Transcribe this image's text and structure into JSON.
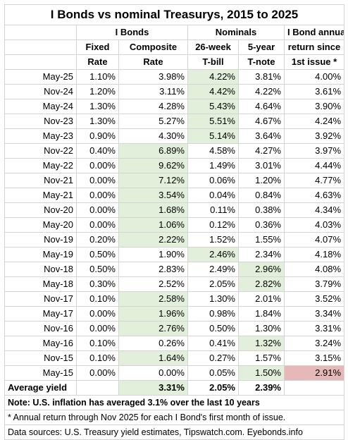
{
  "title": "I Bonds vs nominal Treasurys, 2015 to 2025",
  "header": {
    "group_ibonds": "I Bonds",
    "group_nominals": "Nominals",
    "group_return": "I Bond annual",
    "col_fixed_1": "Fixed",
    "col_fixed_2": "Rate",
    "col_comp_1": "Composite",
    "col_comp_2": "Rate",
    "col_tbill_1": "26-week",
    "col_tbill_2": "T-bill",
    "col_tnote_1": "5-year",
    "col_tnote_2": "T-note",
    "col_return_1": "return since",
    "col_return_2": "1st issue *"
  },
  "highlight_colors": {
    "green": "#e2efda",
    "red": "#e6b8b7"
  },
  "rows": [
    {
      "date": "May-25",
      "fixed": "1.10%",
      "composite": "3.98%",
      "tbill": "4.22%",
      "tnote": "3.81%",
      "ret": "4.00%"
    },
    {
      "date": "Nov-24",
      "fixed": "1.20%",
      "composite": "3.11%",
      "tbill": "4.42%",
      "tnote": "4.22%",
      "ret": "3.61%"
    },
    {
      "date": "May-24",
      "fixed": "1.30%",
      "composite": "4.28%",
      "tbill": "5.43%",
      "tnote": "4.64%",
      "ret": "3.90%"
    },
    {
      "date": "Nov-23",
      "fixed": "1.30%",
      "composite": "5.27%",
      "tbill": "5.51%",
      "tnote": "4.67%",
      "ret": "4.24%"
    },
    {
      "date": "May-23",
      "fixed": "0.90%",
      "composite": "4.30%",
      "tbill": "5.14%",
      "tnote": "3.64%",
      "ret": "3.92%"
    },
    {
      "date": "Nov-22",
      "fixed": "0.40%",
      "composite": "6.89%",
      "tbill": "4.58%",
      "tnote": "4.27%",
      "ret": "3.97%"
    },
    {
      "date": "May-22",
      "fixed": "0.00%",
      "composite": "9.62%",
      "tbill": "1.49%",
      "tnote": "3.01%",
      "ret": "4.44%"
    },
    {
      "date": "Nov-21",
      "fixed": "0.00%",
      "composite": "7.12%",
      "tbill": "0.06%",
      "tnote": "1.20%",
      "ret": "4.77%"
    },
    {
      "date": "May-21",
      "fixed": "0.00%",
      "composite": "3.54%",
      "tbill": "0.04%",
      "tnote": "0.84%",
      "ret": "4.63%"
    },
    {
      "date": "Nov-20",
      "fixed": "0.00%",
      "composite": "1.68%",
      "tbill": "0.11%",
      "tnote": "0.38%",
      "ret": "4.34%"
    },
    {
      "date": "May-20",
      "fixed": "0.00%",
      "composite": "1.06%",
      "tbill": "0.12%",
      "tnote": "0.36%",
      "ret": "4.03%"
    },
    {
      "date": "Nov-19",
      "fixed": "0.20%",
      "composite": "2.22%",
      "tbill": "1.52%",
      "tnote": "1.55%",
      "ret": "4.07%"
    },
    {
      "date": "May-19",
      "fixed": "0.50%",
      "composite": "1.90%",
      "tbill": "2.46%",
      "tnote": "2.34%",
      "ret": "4.18%"
    },
    {
      "date": "Nov-18",
      "fixed": "0.50%",
      "composite": "2.83%",
      "tbill": "2.49%",
      "tnote": "2.96%",
      "ret": "4.08%"
    },
    {
      "date": "May-18",
      "fixed": "0.30%",
      "composite": "2.52%",
      "tbill": "2.05%",
      "tnote": "2.82%",
      "ret": "3.79%"
    },
    {
      "date": "Nov-17",
      "fixed": "0.10%",
      "composite": "2.58%",
      "tbill": "1.30%",
      "tnote": "2.01%",
      "ret": "3.52%"
    },
    {
      "date": "May-17",
      "fixed": "0.00%",
      "composite": "1.96%",
      "tbill": "0.98%",
      "tnote": "1.84%",
      "ret": "3.34%"
    },
    {
      "date": "Nov-16",
      "fixed": "0.00%",
      "composite": "2.76%",
      "tbill": "0.50%",
      "tnote": "1.30%",
      "ret": "3.31%"
    },
    {
      "date": "May-16",
      "fixed": "0.10%",
      "composite": "0.26%",
      "tbill": "0.41%",
      "tnote": "1.32%",
      "ret": "3.24%"
    },
    {
      "date": "Nov-15",
      "fixed": "0.10%",
      "composite": "1.64%",
      "tbill": "0.27%",
      "tnote": "1.57%",
      "ret": "3.15%"
    },
    {
      "date": "May-15",
      "fixed": "0.00%",
      "composite": "0.00%",
      "tbill": "0.05%",
      "tnote": "1.50%",
      "ret": "2.91%"
    }
  ],
  "highlights": {
    "tbill": [
      0,
      1,
      2,
      3,
      4,
      12
    ],
    "composite": [
      5,
      6,
      7,
      8,
      9,
      10,
      11,
      15,
      16,
      17,
      19
    ],
    "tnote": [
      13,
      14,
      18,
      20
    ],
    "ret_red": [
      20
    ]
  },
  "average": {
    "label": "Average yield",
    "composite": "3.31%",
    "tbill": "2.05%",
    "tnote": "2.39%"
  },
  "notes": {
    "inflation": "Note: U.S. inflation has averaged 3.1% over the last 10 years",
    "annual": "* Annual return through Nov 2025 for each I Bond's first month of issue.",
    "sources": "Data sources: U.S. Treasury yield estimates, Tipswatch.com. Eyebonds.info"
  }
}
